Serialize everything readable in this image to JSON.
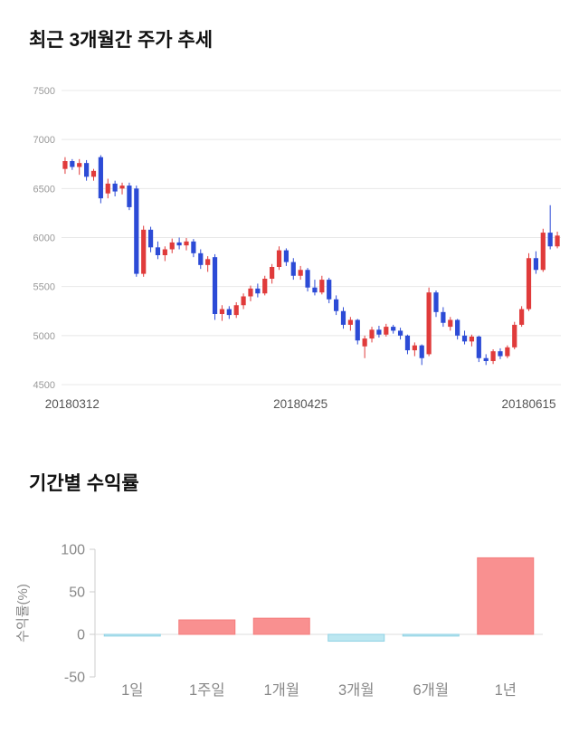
{
  "sections": {
    "price_trend": {
      "title": "최근 3개월간 주가 추세"
    },
    "returns": {
      "title": "기간별 수익률"
    }
  },
  "chart_data": [
    {
      "type": "candlestick",
      "title": "최근 3개월간 주가 추세",
      "ylim": [
        4500,
        7500
      ],
      "yticks": [
        4500,
        5000,
        5500,
        6000,
        6500,
        7000,
        7500
      ],
      "x_tick_labels": [
        "20180312",
        "20180425",
        "20180615"
      ],
      "x_tick_indices": [
        1,
        33,
        65
      ],
      "colors": {
        "up": "#e03b3b",
        "down": "#2c4bd6",
        "grid": "#e8e8e8",
        "y_tick_text": "#999999",
        "x_tick_text": "#555555"
      },
      "candles": [
        [
          6700,
          6820,
          6650,
          6780
        ],
        [
          6780,
          6800,
          6690,
          6720
        ],
        [
          6720,
          6800,
          6640,
          6760
        ],
        [
          6760,
          6790,
          6580,
          6620
        ],
        [
          6620,
          6700,
          6580,
          6680
        ],
        [
          6820,
          6840,
          6350,
          6400
        ],
        [
          6450,
          6600,
          6400,
          6550
        ],
        [
          6550,
          6580,
          6420,
          6470
        ],
        [
          6500,
          6560,
          6440,
          6530
        ],
        [
          6530,
          6560,
          6280,
          6310
        ],
        [
          6500,
          6530,
          5600,
          5630
        ],
        [
          5630,
          6120,
          5600,
          6080
        ],
        [
          6080,
          6110,
          5850,
          5900
        ],
        [
          5900,
          5960,
          5780,
          5820
        ],
        [
          5820,
          5910,
          5760,
          5880
        ],
        [
          5880,
          5990,
          5840,
          5950
        ],
        [
          5950,
          6000,
          5880,
          5920
        ],
        [
          5920,
          5995,
          5870,
          5960
        ],
        [
          5960,
          5985,
          5800,
          5840
        ],
        [
          5840,
          5880,
          5680,
          5720
        ],
        [
          5720,
          5810,
          5650,
          5780
        ],
        [
          5800,
          5830,
          5160,
          5220
        ],
        [
          5220,
          5310,
          5150,
          5270
        ],
        [
          5270,
          5300,
          5170,
          5210
        ],
        [
          5210,
          5340,
          5180,
          5310
        ],
        [
          5310,
          5430,
          5270,
          5400
        ],
        [
          5400,
          5510,
          5350,
          5480
        ],
        [
          5480,
          5530,
          5390,
          5430
        ],
        [
          5430,
          5610,
          5410,
          5580
        ],
        [
          5580,
          5730,
          5530,
          5700
        ],
        [
          5700,
          5910,
          5670,
          5870
        ],
        [
          5870,
          5890,
          5710,
          5750
        ],
        [
          5750,
          5790,
          5570,
          5610
        ],
        [
          5610,
          5710,
          5570,
          5670
        ],
        [
          5670,
          5690,
          5450,
          5490
        ],
        [
          5490,
          5570,
          5410,
          5440
        ],
        [
          5440,
          5610,
          5420,
          5570
        ],
        [
          5570,
          5590,
          5330,
          5370
        ],
        [
          5370,
          5410,
          5210,
          5250
        ],
        [
          5250,
          5290,
          5070,
          5110
        ],
        [
          5110,
          5190,
          5050,
          5160
        ],
        [
          5160,
          5170,
          4910,
          4950
        ],
        [
          4890,
          5000,
          4770,
          4970
        ],
        [
          4970,
          5090,
          4930,
          5060
        ],
        [
          5060,
          5100,
          4980,
          5010
        ],
        [
          5010,
          5120,
          4990,
          5090
        ],
        [
          5090,
          5110,
          5020,
          5050
        ],
        [
          5050,
          5080,
          4960,
          5000
        ],
        [
          5000,
          5010,
          4810,
          4850
        ],
        [
          4850,
          4930,
          4790,
          4900
        ],
        [
          4900,
          4910,
          4700,
          4770
        ],
        [
          4810,
          5490,
          4790,
          5440
        ],
        [
          5440,
          5460,
          5190,
          5240
        ],
        [
          5240,
          5290,
          5090,
          5130
        ],
        [
          5090,
          5190,
          5050,
          5160
        ],
        [
          5160,
          5170,
          4960,
          5000
        ],
        [
          5000,
          5050,
          4910,
          4940
        ],
        [
          4940,
          5010,
          4890,
          4990
        ],
        [
          4990,
          5000,
          4730,
          4770
        ],
        [
          4770,
          4810,
          4700,
          4740
        ],
        [
          4740,
          4860,
          4710,
          4840
        ],
        [
          4840,
          4870,
          4760,
          4790
        ],
        [
          4790,
          4900,
          4770,
          4880
        ],
        [
          4880,
          5140,
          4860,
          5110
        ],
        [
          5110,
          5300,
          5090,
          5270
        ],
        [
          5270,
          5840,
          5250,
          5790
        ],
        [
          5790,
          5860,
          5630,
          5670
        ],
        [
          5670,
          6090,
          5650,
          6050
        ],
        [
          6050,
          6330,
          5880,
          5910
        ],
        [
          5910,
          6060,
          5890,
          6020
        ]
      ]
    },
    {
      "type": "bar",
      "title": "기간별 수익률",
      "categories": [
        "1일",
        "1주일",
        "1개월",
        "3개월",
        "6개월",
        "1년"
      ],
      "values": [
        -2,
        17,
        19,
        -8,
        -2,
        90
      ],
      "ylabel": "수익률(%)",
      "xlabel": "",
      "yticks": [
        -50,
        0,
        50,
        100
      ],
      "ylim": [
        -50,
        100
      ],
      "grid": "zero-line-only",
      "legend": "none",
      "colors": {
        "positive_fill": "#f99090",
        "positive_stroke": "#f47c7c",
        "negative_fill": "#bce7f1",
        "negative_stroke": "#8fd2e4",
        "axis": "#cccccc",
        "zero_line": "#dddddd",
        "tick_text": "#888888"
      }
    }
  ]
}
